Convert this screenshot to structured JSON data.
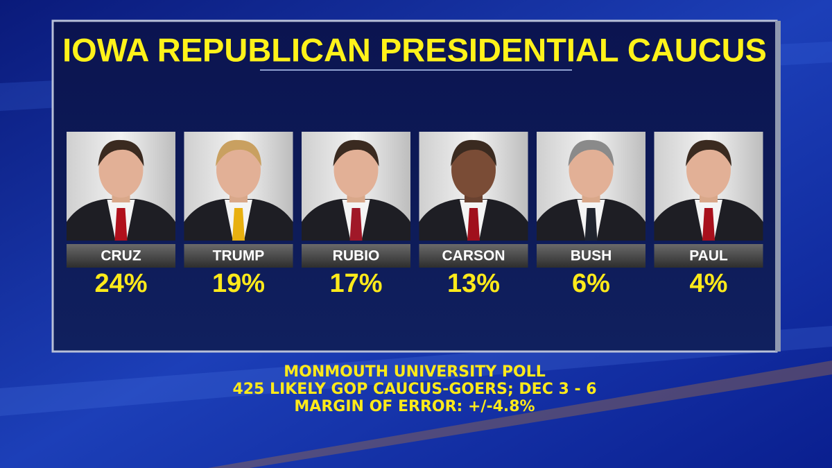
{
  "header": {
    "title": "IOWA REPUBLICAN PRESIDENTIAL CAUCUS"
  },
  "candidates": [
    {
      "name": "CRUZ",
      "percent": "24%"
    },
    {
      "name": "TRUMP",
      "percent": "19%"
    },
    {
      "name": "RUBIO",
      "percent": "17%"
    },
    {
      "name": "CARSON",
      "percent": "13%"
    },
    {
      "name": "BUSH",
      "percent": "6%"
    },
    {
      "name": "PAUL",
      "percent": "4%"
    }
  ],
  "footer": {
    "lines": [
      "MONMOUTH UNIVERSITY POLL",
      "425 LIKELY GOP CAUCUS-GOERS; DEC 3 - 6",
      "MARGIN OF ERROR: +/-4.8%"
    ]
  }
}
